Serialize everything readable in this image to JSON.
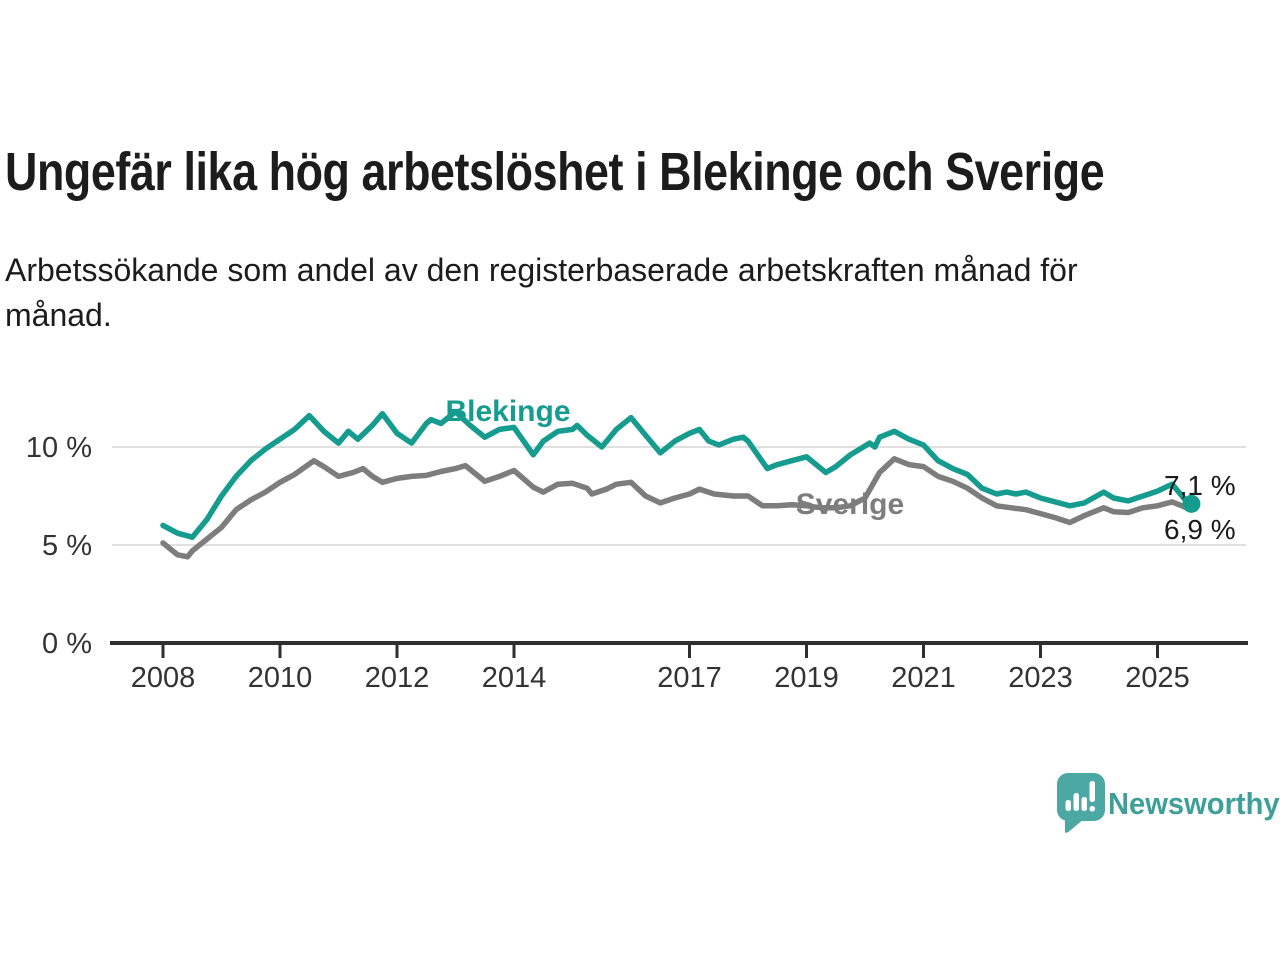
{
  "title": "Ungefär lika hög arbetslöshet i Blekinge och Sverige",
  "subtitle": "Arbetssökande som andel av den registerbaserade arbetskraften månad för månad.",
  "branding": {
    "name": "Newsworthy",
    "icon": "bar-chart-speech-bubble-icon",
    "icon_color": "#4BA8A2",
    "text_color": "#3EA099"
  },
  "chart_data": {
    "type": "line",
    "title": "Ungefär lika hög arbetslöshet i Blekinge och Sverige",
    "xlabel": "",
    "ylabel": "",
    "x_unit": "decimal_year",
    "xlim": [
      2007.1,
      2026.5
    ],
    "ylim": [
      0,
      12.3
    ],
    "grid": "horizontal",
    "legend_position": "inline-labels",
    "style": {
      "axis_color": "#2f2f2f",
      "grid_color": "#e0e0e0",
      "tick_label_color": "#333333",
      "annotation_color": "#1a1a1a"
    },
    "y_ticks": [
      {
        "label": "0 %",
        "value": 0,
        "gridline": false
      },
      {
        "label": "5 %",
        "value": 5,
        "gridline": true
      },
      {
        "label": "10 %",
        "value": 10,
        "gridline": true
      }
    ],
    "x_ticks": [
      {
        "label": "2008",
        "year": 2008
      },
      {
        "label": "2010",
        "year": 2010
      },
      {
        "label": "2012",
        "year": 2012
      },
      {
        "label": "2014",
        "year": 2014
      },
      {
        "label": "2017",
        "year": 2017
      },
      {
        "label": "2019",
        "year": 2019
      },
      {
        "label": "2021",
        "year": 2021
      },
      {
        "label": "2023",
        "year": 2023
      },
      {
        "label": "2025",
        "year": 2025
      }
    ],
    "series": [
      {
        "name": "Sverige",
        "color": "#7d7d7d",
        "end_label": "6,9 %",
        "end_dot": false,
        "points": [
          [
            2008.0,
            5.1
          ],
          [
            2008.25,
            4.5
          ],
          [
            2008.42,
            4.4
          ],
          [
            2008.5,
            4.7
          ],
          [
            2008.75,
            5.3
          ],
          [
            2009.0,
            5.9
          ],
          [
            2009.25,
            6.8
          ],
          [
            2009.5,
            7.3
          ],
          [
            2009.75,
            7.7
          ],
          [
            2010.0,
            8.2
          ],
          [
            2010.25,
            8.6
          ],
          [
            2010.58,
            9.3
          ],
          [
            2010.75,
            9.0
          ],
          [
            2011.0,
            8.5
          ],
          [
            2011.25,
            8.7
          ],
          [
            2011.42,
            8.9
          ],
          [
            2011.58,
            8.5
          ],
          [
            2011.75,
            8.2
          ],
          [
            2012.0,
            8.4
          ],
          [
            2012.25,
            8.5
          ],
          [
            2012.5,
            8.55
          ],
          [
            2012.75,
            8.75
          ],
          [
            2013.0,
            8.9
          ],
          [
            2013.17,
            9.05
          ],
          [
            2013.5,
            8.25
          ],
          [
            2013.75,
            8.5
          ],
          [
            2014.0,
            8.8
          ],
          [
            2014.33,
            7.95
          ],
          [
            2014.5,
            7.7
          ],
          [
            2014.75,
            8.1
          ],
          [
            2015.0,
            8.15
          ],
          [
            2015.25,
            7.9
          ],
          [
            2015.33,
            7.6
          ],
          [
            2015.58,
            7.85
          ],
          [
            2015.75,
            8.1
          ],
          [
            2016.0,
            8.2
          ],
          [
            2016.25,
            7.5
          ],
          [
            2016.5,
            7.15
          ],
          [
            2016.75,
            7.4
          ],
          [
            2017.0,
            7.6
          ],
          [
            2017.17,
            7.85
          ],
          [
            2017.42,
            7.6
          ],
          [
            2017.75,
            7.5
          ],
          [
            2018.0,
            7.5
          ],
          [
            2018.25,
            7.0
          ],
          [
            2018.5,
            7.0
          ],
          [
            2018.75,
            7.05
          ],
          [
            2019.0,
            7.0
          ],
          [
            2019.25,
            6.9
          ],
          [
            2019.5,
            6.9
          ],
          [
            2019.75,
            7.0
          ],
          [
            2020.0,
            7.4
          ],
          [
            2020.25,
            8.7
          ],
          [
            2020.5,
            9.4
          ],
          [
            2020.75,
            9.1
          ],
          [
            2021.0,
            9.0
          ],
          [
            2021.25,
            8.5
          ],
          [
            2021.5,
            8.25
          ],
          [
            2021.75,
            7.9
          ],
          [
            2022.0,
            7.4
          ],
          [
            2022.25,
            7.0
          ],
          [
            2022.5,
            6.9
          ],
          [
            2022.75,
            6.8
          ],
          [
            2023.0,
            6.6
          ],
          [
            2023.25,
            6.4
          ],
          [
            2023.5,
            6.15
          ],
          [
            2023.75,
            6.5
          ],
          [
            2024.08,
            6.9
          ],
          [
            2024.25,
            6.7
          ],
          [
            2024.5,
            6.66
          ],
          [
            2024.75,
            6.9
          ],
          [
            2025.0,
            7.0
          ],
          [
            2025.25,
            7.2
          ],
          [
            2025.5,
            6.9
          ],
          [
            2025.58,
            6.9
          ]
        ]
      },
      {
        "name": "Blekinge",
        "color": "#169c8e",
        "end_label": "7,1 %",
        "end_dot": true,
        "points": [
          [
            2008.0,
            6.0
          ],
          [
            2008.25,
            5.6
          ],
          [
            2008.5,
            5.4
          ],
          [
            2008.75,
            6.3
          ],
          [
            2009.0,
            7.5
          ],
          [
            2009.25,
            8.5
          ],
          [
            2009.5,
            9.3
          ],
          [
            2009.75,
            9.9
          ],
          [
            2010.0,
            10.4
          ],
          [
            2010.25,
            10.9
          ],
          [
            2010.5,
            11.6
          ],
          [
            2010.75,
            10.8
          ],
          [
            2011.0,
            10.2
          ],
          [
            2011.17,
            10.8
          ],
          [
            2011.33,
            10.4
          ],
          [
            2011.58,
            11.1
          ],
          [
            2011.75,
            11.7
          ],
          [
            2012.0,
            10.7
          ],
          [
            2012.25,
            10.2
          ],
          [
            2012.5,
            11.2
          ],
          [
            2012.58,
            11.4
          ],
          [
            2012.75,
            11.2
          ],
          [
            2013.0,
            11.8
          ],
          [
            2013.25,
            11.1
          ],
          [
            2013.5,
            10.5
          ],
          [
            2013.75,
            10.9
          ],
          [
            2014.0,
            11.0
          ],
          [
            2014.33,
            9.6
          ],
          [
            2014.5,
            10.3
          ],
          [
            2014.75,
            10.8
          ],
          [
            2015.0,
            10.9
          ],
          [
            2015.08,
            11.1
          ],
          [
            2015.25,
            10.6
          ],
          [
            2015.5,
            10.0
          ],
          [
            2015.75,
            10.9
          ],
          [
            2016.0,
            11.5
          ],
          [
            2016.25,
            10.6
          ],
          [
            2016.5,
            9.7
          ],
          [
            2016.75,
            10.3
          ],
          [
            2017.0,
            10.7
          ],
          [
            2017.17,
            10.9
          ],
          [
            2017.33,
            10.3
          ],
          [
            2017.5,
            10.1
          ],
          [
            2017.75,
            10.4
          ],
          [
            2017.92,
            10.5
          ],
          [
            2018.0,
            10.3
          ],
          [
            2018.33,
            8.9
          ],
          [
            2018.5,
            9.1
          ],
          [
            2018.75,
            9.3
          ],
          [
            2019.0,
            9.5
          ],
          [
            2019.33,
            8.7
          ],
          [
            2019.5,
            9.0
          ],
          [
            2019.75,
            9.6
          ],
          [
            2020.08,
            10.2
          ],
          [
            2020.17,
            10.0
          ],
          [
            2020.25,
            10.5
          ],
          [
            2020.5,
            10.8
          ],
          [
            2020.75,
            10.4
          ],
          [
            2021.0,
            10.1
          ],
          [
            2021.25,
            9.3
          ],
          [
            2021.5,
            8.9
          ],
          [
            2021.75,
            8.6
          ],
          [
            2022.0,
            7.9
          ],
          [
            2022.25,
            7.6
          ],
          [
            2022.42,
            7.7
          ],
          [
            2022.58,
            7.6
          ],
          [
            2022.75,
            7.7
          ],
          [
            2023.0,
            7.4
          ],
          [
            2023.25,
            7.2
          ],
          [
            2023.5,
            7.0
          ],
          [
            2023.75,
            7.15
          ],
          [
            2024.08,
            7.7
          ],
          [
            2024.25,
            7.4
          ],
          [
            2024.5,
            7.25
          ],
          [
            2024.75,
            7.5
          ],
          [
            2025.0,
            7.75
          ],
          [
            2025.25,
            8.1
          ],
          [
            2025.42,
            7.5
          ],
          [
            2025.5,
            7.2
          ],
          [
            2025.58,
            7.1
          ]
        ]
      }
    ]
  }
}
